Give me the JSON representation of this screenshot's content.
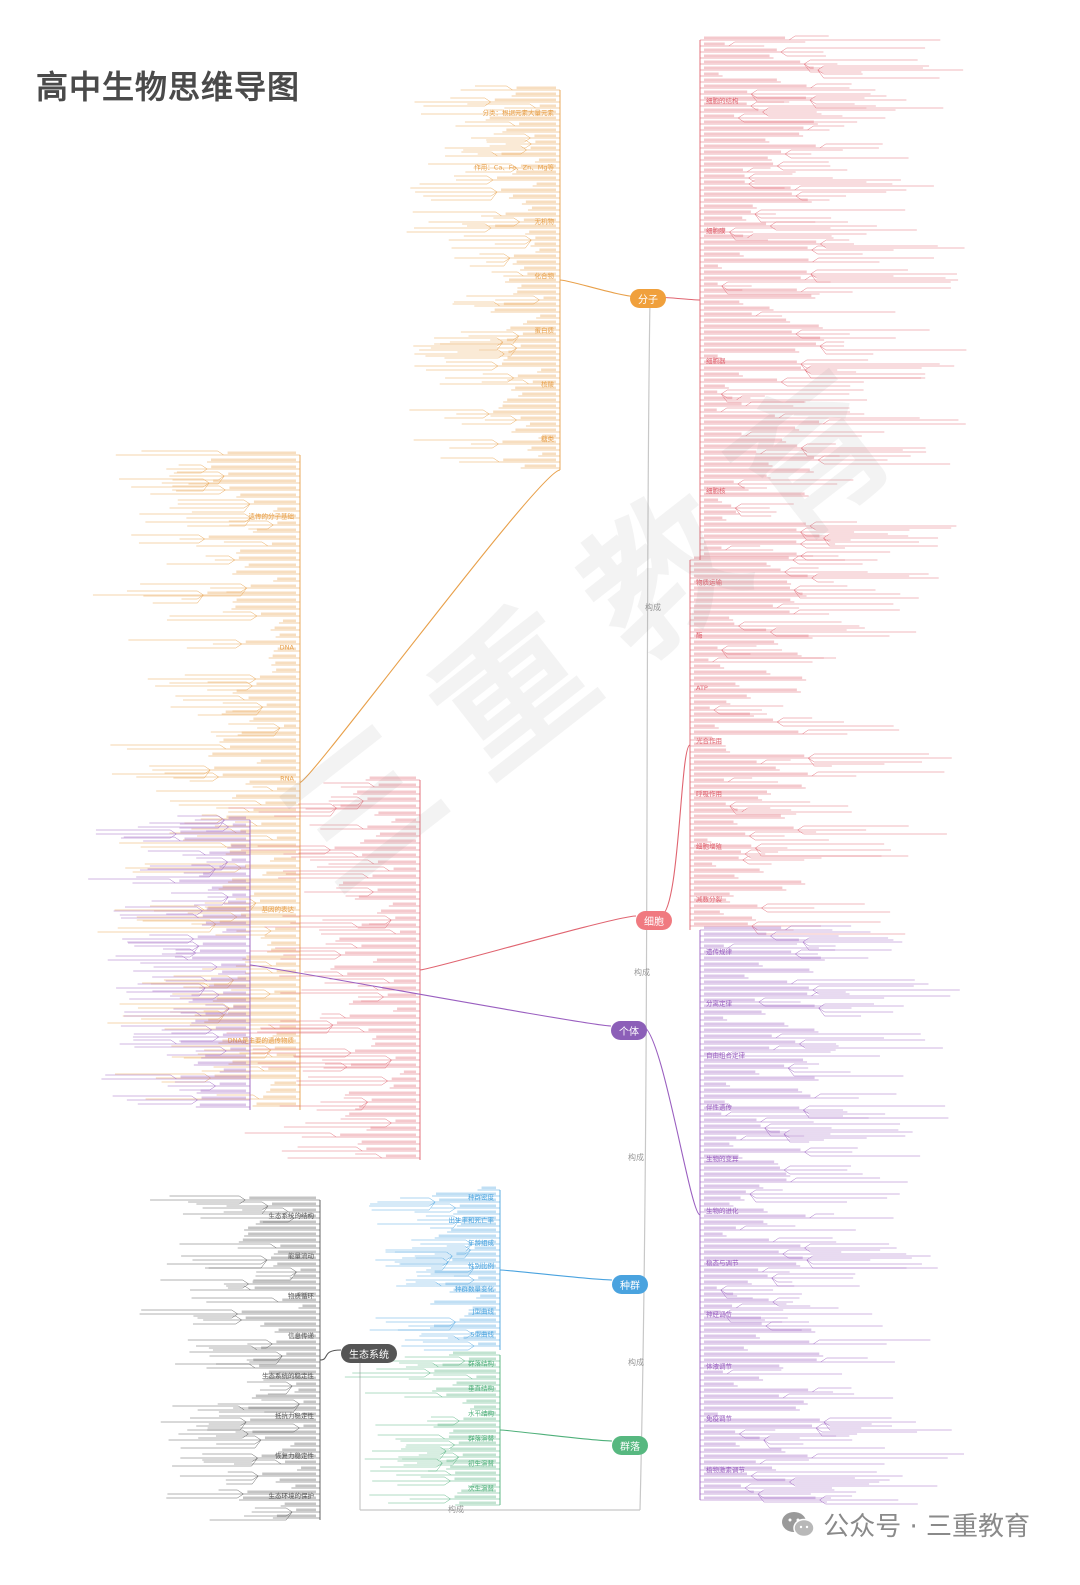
{
  "title": "高中生物思维导图",
  "footer": {
    "text": "公众号 · 三重教育",
    "icon": "wechat-icon"
  },
  "watermark": "三重教育",
  "central_axis": {
    "connector_label": "构成"
  },
  "hubs": {
    "molecule": {
      "label": "分子",
      "color": "#f0a03c"
    },
    "cell": {
      "label": "细胞",
      "color": "#f07a80"
    },
    "individual": {
      "label": "个体",
      "color": "#8c5fb8"
    },
    "population": {
      "label": "种群",
      "color": "#4aa3df"
    },
    "community": {
      "label": "群落",
      "color": "#57b880"
    },
    "ecosystem": {
      "label": "生态系统",
      "color": "#555555"
    }
  },
  "branches": {
    "molecule_upper": [
      "分类：根据元素大量元素",
      "作用：Ca、Fe、Zn、Mg等",
      "无机物",
      "化合物",
      "蛋白质",
      "核酸",
      "糖类"
    ],
    "molecule_left": [
      "遗传的分子基础",
      "DNA",
      "RNA",
      "基因的表达",
      "DNA是主要的遗传物质"
    ],
    "cell_branch": [
      "细胞的结构",
      "细胞膜",
      "细胞器",
      "细胞核",
      "物质运输",
      "酶",
      "ATP",
      "光合作用",
      "呼吸作用",
      "细胞增殖",
      "减数分裂"
    ],
    "individual_branch": [
      "遗传规律",
      "分离定律",
      "自由组合定律",
      "伴性遗传",
      "生物的变异",
      "生物的进化",
      "稳态与调节",
      "神经调节",
      "体液调节",
      "免疫调节",
      "植物激素调节"
    ],
    "population_branch": [
      "种群密度",
      "出生率和死亡率",
      "年龄组成",
      "性别比例",
      "种群数量变化",
      "J型曲线",
      "S型曲线"
    ],
    "community_branch": [
      "群落结构",
      "垂直结构",
      "水平结构",
      "群落演替",
      "初生演替",
      "次生演替"
    ],
    "ecosystem_branch": [
      "生态系统的结构",
      "能量流动",
      "物质循环",
      "信息传递",
      "生态系统的稳定性",
      "抵抗力稳定性",
      "恢复力稳定性",
      "生态环境的保护"
    ]
  },
  "colors": {
    "molecule": "#e8a04a",
    "cell": "#e06470",
    "individual": "#9a5fc0",
    "population": "#4aa3df",
    "community": "#4fb07a",
    "ecosystem": "#555555",
    "axis": "#c8c8c8"
  }
}
